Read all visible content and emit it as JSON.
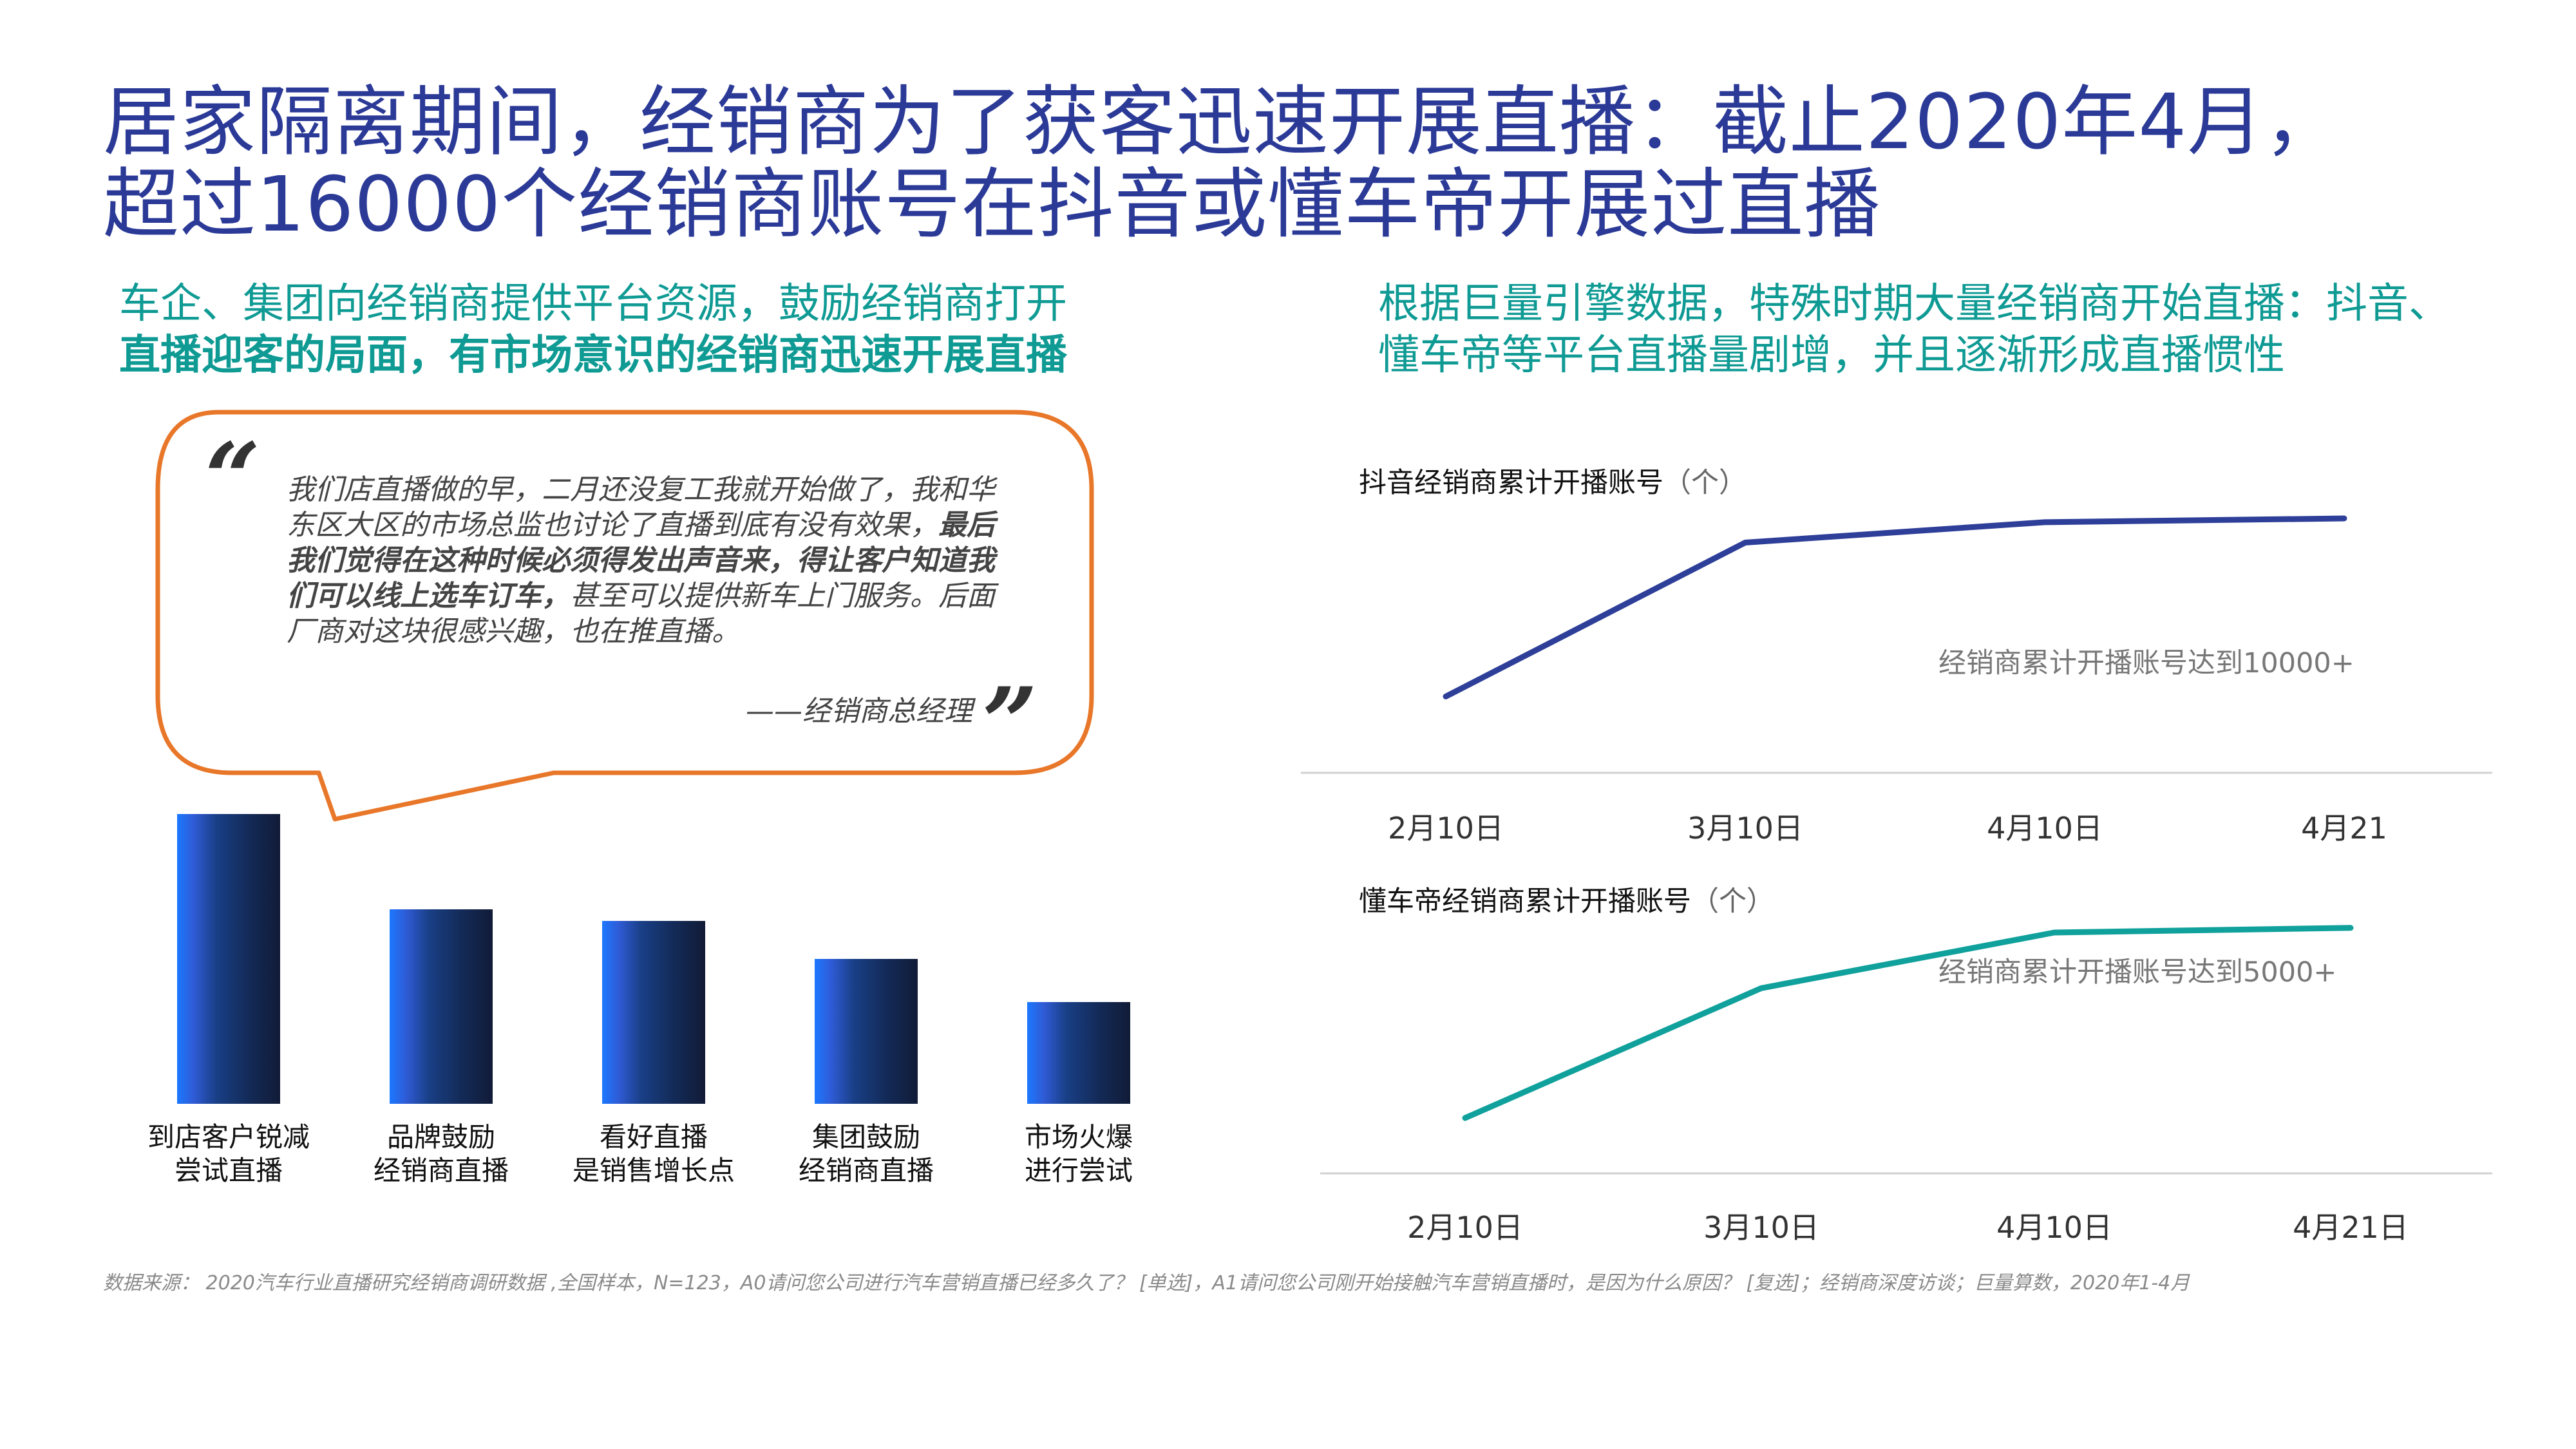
{
  "title": {
    "line1": "居家隔离期间，经销商为了获客迅速开展直播：截止2020年4月，",
    "line2": "超过16000个经销商账号在抖音或懂车帝开展过直播"
  },
  "left": {
    "subheading_line1": "车企、集团向经销商提供平台资源，鼓励经销商打开",
    "subheading_line2": "直播迎客的局面，有市场意识的经销商迅速开展直播",
    "quote": {
      "open_mark": "“",
      "close_mark": "”",
      "part1": "我们店直播做的早，二月还没复工我就开始做了，我和华东区大区的市场总监也讨论了直播到底有没有效果，",
      "part2": "最后我们觉得在这种时候必须得发出声音来，得让客户知道我们可以线上选车订车，",
      "part3": "甚至可以提供新车上门服务。后面厂商对这块很感兴趣，也在推直播。",
      "author": "——经销商总经理"
    }
  },
  "right": {
    "subheading_line1": "根据巨量引擎数据，特殊时期大量经销商开始直播：抖音、",
    "subheading_line2": "懂车帝等平台直播量剧增，并且逐渐形成直播惯性"
  },
  "chart_data": [
    {
      "type": "bar",
      "categories": [
        "到店客户锐减\n尝试直播",
        "品牌鼓励\n经销商直播",
        "看好直播\n是销售增长点",
        "集团鼓励\n经销商直播",
        "市场火爆\n进行尝试"
      ],
      "category_lines": [
        [
          "到店客户锐减",
          "尝试直播"
        ],
        [
          "品牌鼓励",
          "经销商直播"
        ],
        [
          "看好直播",
          "是销售增长点"
        ],
        [
          "集团鼓励",
          "经销商直播"
        ],
        [
          "市场火爆",
          "进行尝试"
        ]
      ],
      "values": [
        1.0,
        0.67,
        0.63,
        0.5,
        0.35
      ],
      "value_note": "",
      "title": "",
      "xlabel": "",
      "ylabel": "",
      "ylim": [
        0,
        1.0
      ],
      "color": "#13254d",
      "gradient_accent": "#1c78ff"
    },
    {
      "type": "line",
      "title": "抖音经销商累计开播账号",
      "unit": "（个）",
      "x": [
        "2月10日",
        "3月10日",
        "4月10日",
        "4月21"
      ],
      "values": [
        0.3,
        0.905,
        0.985,
        1.0
      ],
      "relative_values": true,
      "annotation": "经销商累计开播账号达到10000+",
      "color": "#2e3f99",
      "ylim": [
        0,
        1.0
      ]
    },
    {
      "type": "line",
      "title": "懂车帝经销商累计开播账号",
      "unit": "（个）",
      "x": [
        "2月10日",
        "3月10日",
        "4月10日",
        "4月21日"
      ],
      "values": [
        0.3,
        0.72,
        0.9,
        0.915
      ],
      "relative_values": true,
      "annotation": "经销商累计开播账号达到5000+",
      "color": "#10a19c",
      "ylim": [
        0,
        1.0
      ]
    }
  ],
  "footnote": "数据来源：  2020汽车行业直播研究经销商调研数据 ,全国样本，N=123，A0请问您公司进行汽车营销直播已经多久了？  [单选]，A1请问您公司刚开始接触汽车营销直播时，是因为什么原因？  [复选]；经销商深度访谈；巨量算数，2020年1-4月",
  "colors": {
    "title": "#2b3a97",
    "teal": "#0f9a94",
    "bubble_border": "#e8772a",
    "axis": "#d0d0d0"
  }
}
